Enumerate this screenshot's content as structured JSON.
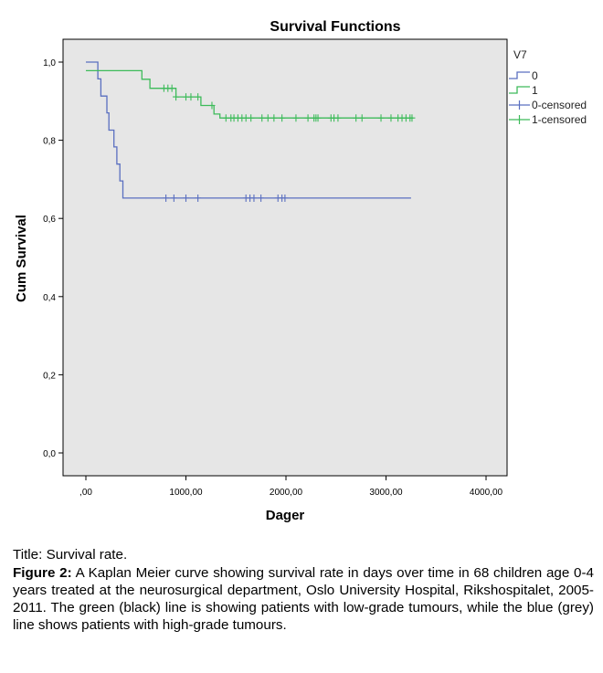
{
  "chart_data": {
    "type": "line",
    "title": "Survival Functions",
    "xlabel": "Dager",
    "ylabel": "Cum Survival",
    "xlim": [
      0,
      4000
    ],
    "ylim": [
      0,
      1.0
    ],
    "x_ticks": [
      0,
      1000,
      2000,
      3000,
      4000
    ],
    "x_tick_labels": [
      ",00",
      "1000,00",
      "2000,00",
      "3000,00",
      "4000,00"
    ],
    "y_ticks": [
      0,
      0.2,
      0.4,
      0.6,
      0.8,
      1.0
    ],
    "y_tick_labels": [
      "0,0",
      "0,2",
      "0,4",
      "0,6",
      "0,8",
      "1,0"
    ],
    "grid": false,
    "legend_title": "V7",
    "legend_position": "right",
    "series": [
      {
        "name": "0",
        "color": "#5a6fc0",
        "step_points": [
          [
            0,
            1.0
          ],
          [
            120,
            1.0
          ],
          [
            120,
            0.957
          ],
          [
            150,
            0.957
          ],
          [
            150,
            0.913
          ],
          [
            210,
            0.913
          ],
          [
            210,
            0.87
          ],
          [
            230,
            0.87
          ],
          [
            230,
            0.826
          ],
          [
            280,
            0.826
          ],
          [
            280,
            0.783
          ],
          [
            310,
            0.783
          ],
          [
            310,
            0.739
          ],
          [
            340,
            0.739
          ],
          [
            340,
            0.696
          ],
          [
            370,
            0.696
          ],
          [
            370,
            0.652
          ],
          [
            3250,
            0.652
          ]
        ],
        "censored_x": [
          800,
          880,
          1000,
          1120,
          1600,
          1640,
          1680,
          1750,
          1920,
          1960,
          1990
        ]
      },
      {
        "name": "1",
        "color": "#3dbb5a",
        "step_points": [
          [
            0,
            0.978
          ],
          [
            560,
            0.978
          ],
          [
            560,
            0.956
          ],
          [
            640,
            0.956
          ],
          [
            640,
            0.933
          ],
          [
            900,
            0.933
          ],
          [
            900,
            0.911
          ],
          [
            1150,
            0.911
          ],
          [
            1150,
            0.889
          ],
          [
            1280,
            0.889
          ],
          [
            1280,
            0.867
          ],
          [
            1340,
            0.867
          ],
          [
            1340,
            0.857
          ],
          [
            3270,
            0.857
          ]
        ],
        "censored_x": [
          780,
          820,
          860,
          900,
          1000,
          1050,
          1120,
          1260,
          1400,
          1450,
          1480,
          1520,
          1560,
          1600,
          1650,
          1760,
          1820,
          1880,
          1960,
          2100,
          2220,
          2280,
          2300,
          2320,
          2450,
          2480,
          2520,
          2700,
          2760,
          2950,
          3050,
          3120,
          3160,
          3200,
          3240,
          3260
        ]
      }
    ],
    "legend_entries": [
      {
        "label": "0",
        "kind": "line",
        "color": "#5a6fc0"
      },
      {
        "label": "1",
        "kind": "line",
        "color": "#3dbb5a"
      },
      {
        "label": "0-censored",
        "kind": "censor",
        "color": "#5a6fc0"
      },
      {
        "label": "1-censored",
        "kind": "censor",
        "color": "#3dbb5a"
      }
    ],
    "plot_background": "#e6e6e6"
  },
  "caption": {
    "title_line": "Title: Survival rate.",
    "figure_label": "Figure 2:",
    "body": "A Kaplan Meier curve showing survival rate in days over time in 68 children age 0-4 years treated at the neurosurgical department, Oslo University Hospital, Rikshospitalet, 2005-2011. The green (black) line is showing patients with low-grade tumours, while the blue (grey) line shows patients with high-grade tumours."
  }
}
